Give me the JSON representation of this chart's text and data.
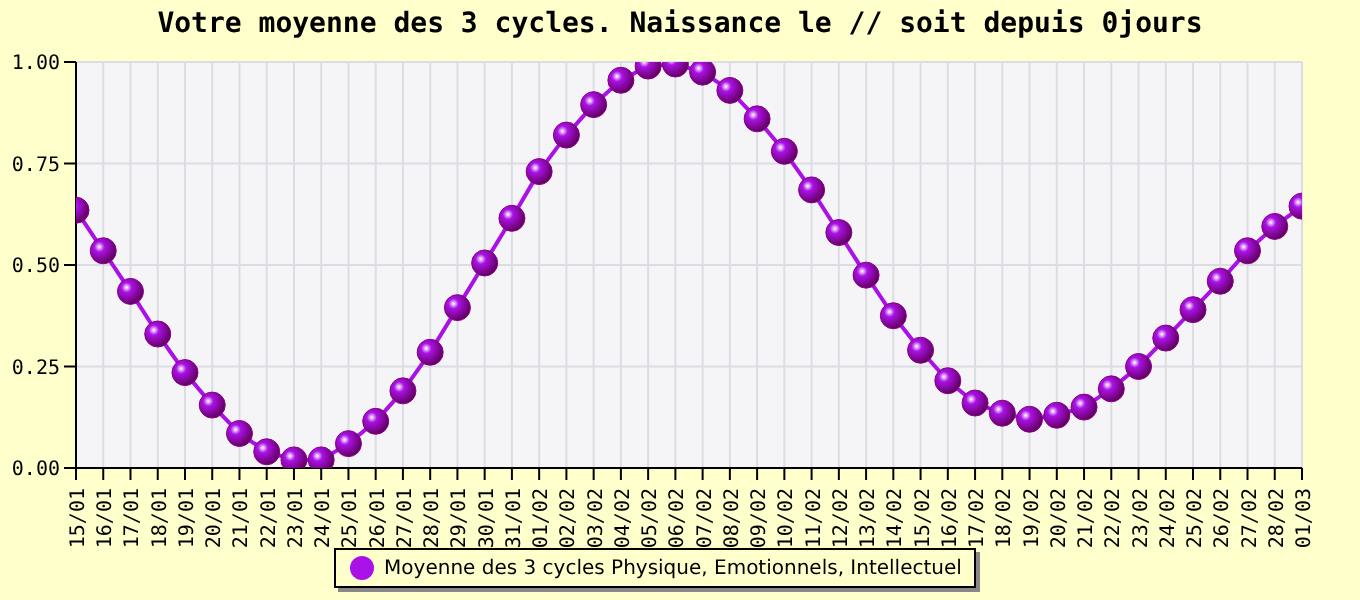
{
  "chart_data": {
    "type": "line",
    "title": "Votre moyenne des 3 cycles. Naissance le // soit depuis 0jours",
    "categories": [
      "15/01",
      "16/01",
      "17/01",
      "18/01",
      "19/01",
      "20/01",
      "21/01",
      "22/01",
      "23/01",
      "24/01",
      "25/01",
      "26/01",
      "27/01",
      "28/01",
      "29/01",
      "30/01",
      "31/01",
      "01/02",
      "02/02",
      "03/02",
      "04/02",
      "05/02",
      "06/02",
      "07/02",
      "08/02",
      "09/02",
      "10/02",
      "11/02",
      "12/02",
      "13/02",
      "14/02",
      "15/02",
      "16/02",
      "17/02",
      "18/02",
      "19/02",
      "20/02",
      "21/02",
      "22/02",
      "23/02",
      "24/02",
      "25/02",
      "26/02",
      "27/02",
      "28/02",
      "01/03"
    ],
    "series": [
      {
        "name": "Moyenne des 3 cycles Physique, Emotionnels, Intellectuel",
        "color": "#aa11e6",
        "values": [
          0.635,
          0.535,
          0.435,
          0.33,
          0.235,
          0.155,
          0.085,
          0.04,
          0.02,
          0.02,
          0.06,
          0.115,
          0.19,
          0.285,
          0.395,
          0.505,
          0.615,
          0.73,
          0.82,
          0.895,
          0.955,
          0.99,
          0.995,
          0.975,
          0.93,
          0.86,
          0.78,
          0.685,
          0.58,
          0.475,
          0.375,
          0.29,
          0.215,
          0.16,
          0.135,
          0.12,
          0.13,
          0.15,
          0.195,
          0.25,
          0.32,
          0.39,
          0.46,
          0.535,
          0.595,
          0.645
        ]
      }
    ],
    "ylim": [
      0,
      1
    ],
    "yticks": [
      {
        "value": 0,
        "label": "0.00"
      },
      {
        "value": 0.25,
        "label": "0.25"
      },
      {
        "value": 0.5,
        "label": "0.50"
      },
      {
        "value": 0.75,
        "label": "0.75"
      },
      {
        "value": 1,
        "label": "1.00"
      }
    ],
    "grid": true,
    "legend": "bottom",
    "marker": "circle",
    "line_style": "solid"
  }
}
